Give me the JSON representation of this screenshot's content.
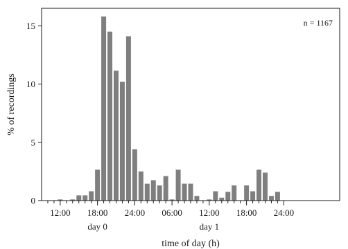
{
  "chart_data": {
    "type": "bar",
    "xlabel": "time of day (h)",
    "ylabel": "% of recordings",
    "annotation": "n = 1167",
    "ylim": [
      0,
      16.5
    ],
    "yticks": [
      0,
      5,
      10,
      15
    ],
    "bar_color": "#7f7f7f",
    "x_start_hour": 9,
    "x_end_hour": 57,
    "x_tick_labels": [
      {
        "hour": 12,
        "label": "12:00"
      },
      {
        "hour": 18,
        "label": "18:00"
      },
      {
        "hour": 24,
        "label": "24:00"
      },
      {
        "hour": 30,
        "label": "06:00"
      },
      {
        "hour": 36,
        "label": "12:00"
      },
      {
        "hour": 42,
        "label": "18:00"
      },
      {
        "hour": 48,
        "label": "24:00"
      }
    ],
    "day_labels": [
      {
        "hour": 18,
        "label": "day 0"
      },
      {
        "hour": 36,
        "label": "day 1"
      }
    ],
    "hours": [
      10,
      11,
      12,
      13,
      14,
      15,
      16,
      17,
      18,
      19,
      20,
      21,
      22,
      23,
      24,
      25,
      26,
      27,
      28,
      29,
      30,
      31,
      32,
      33,
      34,
      35,
      36,
      37,
      38,
      39,
      40,
      41,
      42,
      43,
      44,
      45,
      46,
      47,
      48
    ],
    "values": [
      0.0,
      0.0,
      0.1,
      0.0,
      0.1,
      0.45,
      0.45,
      0.8,
      2.65,
      15.8,
      14.5,
      11.15,
      10.2,
      14.1,
      4.4,
      2.5,
      1.45,
      1.75,
      1.3,
      2.1,
      0.1,
      2.65,
      1.45,
      1.45,
      0.4,
      0.0,
      0.1,
      0.8,
      0.25,
      0.75,
      1.3,
      0.0,
      1.3,
      0.8,
      2.65,
      2.4,
      0.4,
      0.75,
      0.0
    ]
  }
}
